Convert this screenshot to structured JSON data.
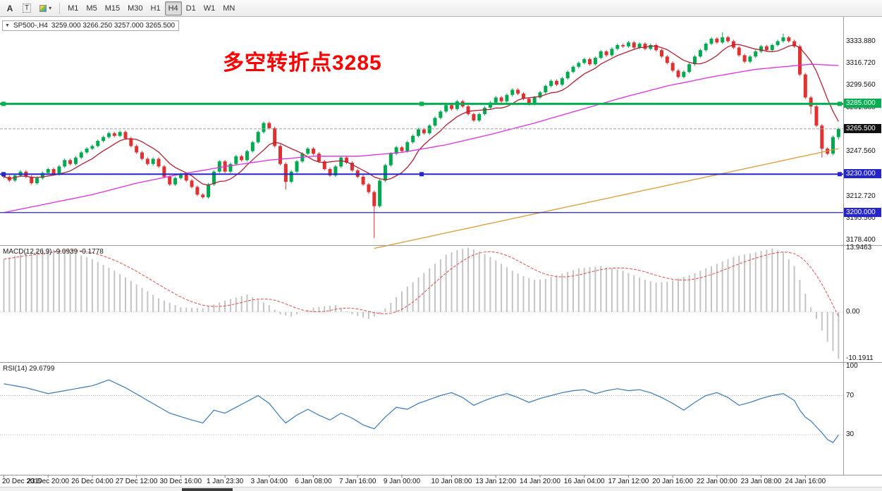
{
  "toolbar": {
    "tool_a_label": "A",
    "tool_t_label": "T",
    "color_tool_icon": "color-picker-icon",
    "dropdown_arrow": "▾",
    "timeframes": [
      "M1",
      "M5",
      "M15",
      "M30",
      "H1",
      "H4",
      "D1",
      "W1",
      "MN"
    ],
    "active_timeframe": "H4"
  },
  "chart": {
    "collapse_icon": "▼",
    "symbol": "SP500-,H4",
    "ohlc_text": "3259.000 3266.250 3257.000 3265.500",
    "annotation": {
      "text": "多空转折点3285",
      "color": "#ff0000"
    }
  },
  "indicators": {
    "macd_label": "MACD(12,26,9) -9.0939 -0.1778",
    "rsi_label": "RSI(14) 29.6799"
  },
  "chart_data": {
    "type": "candlestick",
    "title": "SP500-,H4",
    "timeframe": "H4",
    "up_color": "#00a94f",
    "down_color": "#e03131",
    "current_price": 3265.5,
    "price_axis": {
      "range_top": 3353,
      "range_bottom": 3174.5,
      "ticks": [
        {
          "label": "3333.880",
          "price": 3333.88
        },
        {
          "label": "3316.720",
          "price": 3316.72
        },
        {
          "label": "3299.560",
          "price": 3299.56
        },
        {
          "label": "3281.880",
          "price": 3281.88
        },
        {
          "label": "3247.560",
          "price": 3247.56
        },
        {
          "label": "3212.720",
          "price": 3212.72
        },
        {
          "label": "3195.560",
          "price": 3195.56
        },
        {
          "label": "3178.400",
          "price": 3178.4
        }
      ],
      "tags": [
        {
          "label": "3285.000",
          "price": 3285,
          "bg": "#00b050",
          "fg": "#ffffff"
        },
        {
          "label": "3265.500",
          "price": 3265.5,
          "bg": "#111111",
          "fg": "#ffffff"
        },
        {
          "label": "3230.000",
          "price": 3230,
          "bg": "#2525cc",
          "fg": "#ffffff"
        },
        {
          "label": "3200.000",
          "price": 3200,
          "bg": "#2525cc",
          "fg": "#ffffff"
        }
      ]
    },
    "hlines": [
      {
        "price": 3285,
        "color": "#00b050",
        "width": 3,
        "handles": true
      },
      {
        "price": 3230,
        "color": "#2525cc",
        "width": 2,
        "handles": true
      },
      {
        "price": 3200,
        "color": "#2525cc",
        "width": 1.2,
        "handles": false
      }
    ],
    "candles": {
      "first_open": 3230,
      "closes": [
        3228,
        3225,
        3229,
        3232,
        3228,
        3223,
        3227,
        3231,
        3234,
        3230,
        3236,
        3241,
        3238,
        3243,
        3247,
        3250,
        3252,
        3256,
        3259,
        3262,
        3260,
        3263,
        3258,
        3252,
        3247,
        3242,
        3238,
        3242,
        3236,
        3228,
        3222,
        3227,
        3230,
        3225,
        3220,
        3214,
        3212,
        3222,
        3232,
        3240,
        3232,
        3238,
        3244,
        3241,
        3248,
        3255,
        3263,
        3270,
        3266,
        3252,
        3238,
        3224,
        3232,
        3240,
        3246,
        3250,
        3246,
        3240,
        3234,
        3229,
        3236,
        3243,
        3239,
        3233,
        3228,
        3222,
        3216,
        3205,
        3225,
        3237,
        3246,
        3251,
        3248,
        3255,
        3260,
        3265,
        3262,
        3268,
        3274,
        3279,
        3284,
        3281,
        3287,
        3283,
        3277,
        3272,
        3277,
        3282,
        3286,
        3290,
        3287,
        3292,
        3296,
        3293,
        3289,
        3285,
        3290,
        3294,
        3299,
        3303,
        3300,
        3305,
        3310,
        3314,
        3317,
        3320,
        3316,
        3321,
        3326,
        3323,
        3328,
        3331,
        3330,
        3333,
        3329,
        3332,
        3328,
        3331,
        3327,
        3322,
        3317,
        3311,
        3306,
        3310,
        3316,
        3322,
        3327,
        3332,
        3336,
        3333,
        3337,
        3334,
        3329,
        3323,
        3318,
        3322,
        3326,
        3330,
        3327,
        3331,
        3334,
        3337,
        3334,
        3330,
        3308,
        3290,
        3283,
        3268,
        3250,
        3246,
        3259,
        3265.5
      ],
      "overrides": {
        "51": {
          "low": 3218
        },
        "67": {
          "low": 3180
        },
        "130": {
          "high": 3341
        },
        "141": {
          "high": 3340
        },
        "146": {
          "low": 3277
        },
        "148": {
          "low": 3243
        },
        "151": {
          "open": 3259,
          "high": 3266.25,
          "low": 3257,
          "close": 3265.5
        }
      }
    },
    "moving_averages": [
      {
        "name": "ma-fast",
        "color": "#b02030",
        "period": 8
      },
      {
        "name": "ma-mid",
        "color": "#e02ee0",
        "points": [
          [
            0,
            3200
          ],
          [
            8,
            3207
          ],
          [
            16,
            3214
          ],
          [
            24,
            3223
          ],
          [
            32,
            3230
          ],
          [
            40,
            3236
          ],
          [
            48,
            3241
          ],
          [
            56,
            3244
          ],
          [
            64,
            3244
          ],
          [
            72,
            3247
          ],
          [
            80,
            3253
          ],
          [
            88,
            3261
          ],
          [
            96,
            3270
          ],
          [
            104,
            3280
          ],
          [
            112,
            3290
          ],
          [
            120,
            3299
          ],
          [
            128,
            3306
          ],
          [
            136,
            3312
          ],
          [
            146,
            3316
          ],
          [
            151,
            3315
          ]
        ]
      },
      {
        "name": "ma-slow",
        "color": "#dd9933",
        "points": [
          [
            67,
            3172
          ],
          [
            151,
            3250
          ]
        ]
      }
    ],
    "macd": {
      "histogram_color": "#c4c4c4",
      "signal_color": "#dd4f4f",
      "ticks": [
        {
          "label": "13.9463",
          "value": 13.9463
        },
        {
          "label": "0.00",
          "value": 0
        },
        {
          "label": "-10.1911",
          "value": -10.1911
        }
      ],
      "range_top": 14.4,
      "range_bottom": -10.9,
      "points": [
        [
          0,
          11.5
        ],
        [
          4,
          13
        ],
        [
          8,
          13.8
        ],
        [
          12,
          13.2
        ],
        [
          16,
          11.5
        ],
        [
          20,
          9
        ],
        [
          24,
          6
        ],
        [
          28,
          3
        ],
        [
          32,
          1
        ],
        [
          36,
          0.8
        ],
        [
          40,
          2.5
        ],
        [
          44,
          3.8
        ],
        [
          48,
          1.5
        ],
        [
          50,
          -0.5
        ],
        [
          52,
          -1
        ],
        [
          56,
          1
        ],
        [
          60,
          1.5
        ],
        [
          63,
          -0.5
        ],
        [
          66,
          -1.5
        ],
        [
          68,
          -0.5
        ],
        [
          70,
          2
        ],
        [
          72,
          4.5
        ],
        [
          74,
          6.5
        ],
        [
          76,
          8.5
        ],
        [
          78,
          10.5
        ],
        [
          80,
          12.5
        ],
        [
          82,
          13.5
        ],
        [
          84,
          14
        ],
        [
          86,
          13.2
        ],
        [
          88,
          12
        ],
        [
          90,
          10.5
        ],
        [
          92,
          9
        ],
        [
          94,
          7.8
        ],
        [
          96,
          7
        ],
        [
          98,
          7.2
        ],
        [
          100,
          8
        ],
        [
          104,
          9.5
        ],
        [
          108,
          10
        ],
        [
          112,
          9
        ],
        [
          116,
          7
        ],
        [
          118,
          6.4
        ],
        [
          120,
          6.6
        ],
        [
          124,
          8
        ],
        [
          128,
          10
        ],
        [
          132,
          12
        ],
        [
          136,
          13
        ],
        [
          139,
          13.8
        ],
        [
          141,
          13
        ],
        [
          143,
          10
        ],
        [
          144,
          7
        ],
        [
          145,
          4
        ],
        [
          146,
          1
        ],
        [
          147,
          -1.5
        ],
        [
          148,
          -4
        ],
        [
          149,
          -6.5
        ],
        [
          150,
          -8.5
        ],
        [
          151,
          -10.1911
        ]
      ]
    },
    "rsi": {
      "line_color": "#3a78b5",
      "levels": [
        70,
        30
      ],
      "ticks": [
        {
          "label": "100",
          "value": 100
        },
        {
          "label": "70",
          "value": 70
        },
        {
          "label": "30",
          "value": 30
        }
      ],
      "range_top": 103.5,
      "range_bottom": -11,
      "points": [
        [
          0,
          82
        ],
        [
          4,
          78
        ],
        [
          8,
          72
        ],
        [
          12,
          76
        ],
        [
          16,
          80
        ],
        [
          19,
          86
        ],
        [
          22,
          78
        ],
        [
          26,
          65
        ],
        [
          30,
          52
        ],
        [
          34,
          45
        ],
        [
          36,
          42
        ],
        [
          38,
          55
        ],
        [
          40,
          52
        ],
        [
          42,
          58
        ],
        [
          44,
          64
        ],
        [
          46,
          70
        ],
        [
          48,
          62
        ],
        [
          50,
          48
        ],
        [
          51,
          42
        ],
        [
          53,
          50
        ],
        [
          55,
          56
        ],
        [
          57,
          50
        ],
        [
          59,
          45
        ],
        [
          61,
          52
        ],
        [
          63,
          47
        ],
        [
          65,
          40
        ],
        [
          67,
          36
        ],
        [
          69,
          48
        ],
        [
          71,
          58
        ],
        [
          73,
          56
        ],
        [
          75,
          62
        ],
        [
          77,
          66
        ],
        [
          79,
          70
        ],
        [
          81,
          73
        ],
        [
          83,
          68
        ],
        [
          85,
          60
        ],
        [
          87,
          65
        ],
        [
          89,
          69
        ],
        [
          91,
          72
        ],
        [
          93,
          68
        ],
        [
          95,
          63
        ],
        [
          97,
          67
        ],
        [
          99,
          70
        ],
        [
          101,
          73
        ],
        [
          103,
          75
        ],
        [
          105,
          76
        ],
        [
          107,
          72
        ],
        [
          109,
          75
        ],
        [
          111,
          77
        ],
        [
          113,
          75
        ],
        [
          115,
          76
        ],
        [
          117,
          73
        ],
        [
          119,
          68
        ],
        [
          121,
          62
        ],
        [
          123,
          55
        ],
        [
          125,
          63
        ],
        [
          127,
          70
        ],
        [
          129,
          73
        ],
        [
          131,
          68
        ],
        [
          133,
          60
        ],
        [
          135,
          63
        ],
        [
          137,
          67
        ],
        [
          139,
          70
        ],
        [
          141,
          72
        ],
        [
          143,
          65
        ],
        [
          144,
          55
        ],
        [
          145,
          48
        ],
        [
          146,
          44
        ],
        [
          147,
          38
        ],
        [
          148,
          32
        ],
        [
          149,
          25
        ],
        [
          150,
          22
        ],
        [
          151,
          29.6799
        ]
      ]
    },
    "time_axis": [
      {
        "label": "20 Dec 2019",
        "idx": 0
      },
      {
        "label": "23 Dec 20:00",
        "idx": 8
      },
      {
        "label": "26 Dec 04:00",
        "idx": 16
      },
      {
        "label": "27 Dec 12:00",
        "idx": 24
      },
      {
        "label": "30 Dec 16:00",
        "idx": 32
      },
      {
        "label": "1 Jan 23:30",
        "idx": 40
      },
      {
        "label": "3 Jan 04:00",
        "idx": 48
      },
      {
        "label": "6 Jan 08:00",
        "idx": 56
      },
      {
        "label": "7 Jan 16:00",
        "idx": 64
      },
      {
        "label": "9 Jan 00:00",
        "idx": 72
      },
      {
        "label": "10 Jan 08:00",
        "idx": 81
      },
      {
        "label": "13 Jan 12:00",
        "idx": 89
      },
      {
        "label": "14 Jan 20:00",
        "idx": 97
      },
      {
        "label": "16 Jan 04:00",
        "idx": 105
      },
      {
        "label": "17 Jan 12:00",
        "idx": 113
      },
      {
        "label": "20 Jan 16:00",
        "idx": 121
      },
      {
        "label": "22 Jan 00:00",
        "idx": 129
      },
      {
        "label": "23 Jan 08:00",
        "idx": 137
      },
      {
        "label": "24 Jan 16:00",
        "idx": 145
      }
    ]
  }
}
